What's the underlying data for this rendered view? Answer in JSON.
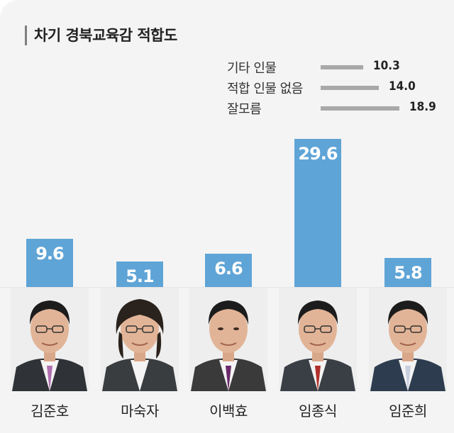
{
  "chart_data": {
    "type": "bar",
    "title": "차기 경북교육감 적합도",
    "categories": [
      "김준호",
      "마숙자",
      "이백효",
      "임종식",
      "임준희"
    ],
    "values": [
      9.6,
      5.1,
      6.6,
      29.6,
      5.8
    ],
    "value_labels": [
      "9.6",
      "5.1",
      "6.6",
      "29.6",
      "5.8"
    ],
    "other_responses": [
      {
        "label": "기타 인물",
        "value": 10.3,
        "value_label": "10.3"
      },
      {
        "label": "적합 인물 없음",
        "value": 14.0,
        "value_label": "14.0"
      },
      {
        "label": "잘모름",
        "value": 18.9,
        "value_label": "18.9"
      }
    ],
    "bar_color": "#5fa4d6",
    "other_bar_color": "#a8a8a8"
  }
}
